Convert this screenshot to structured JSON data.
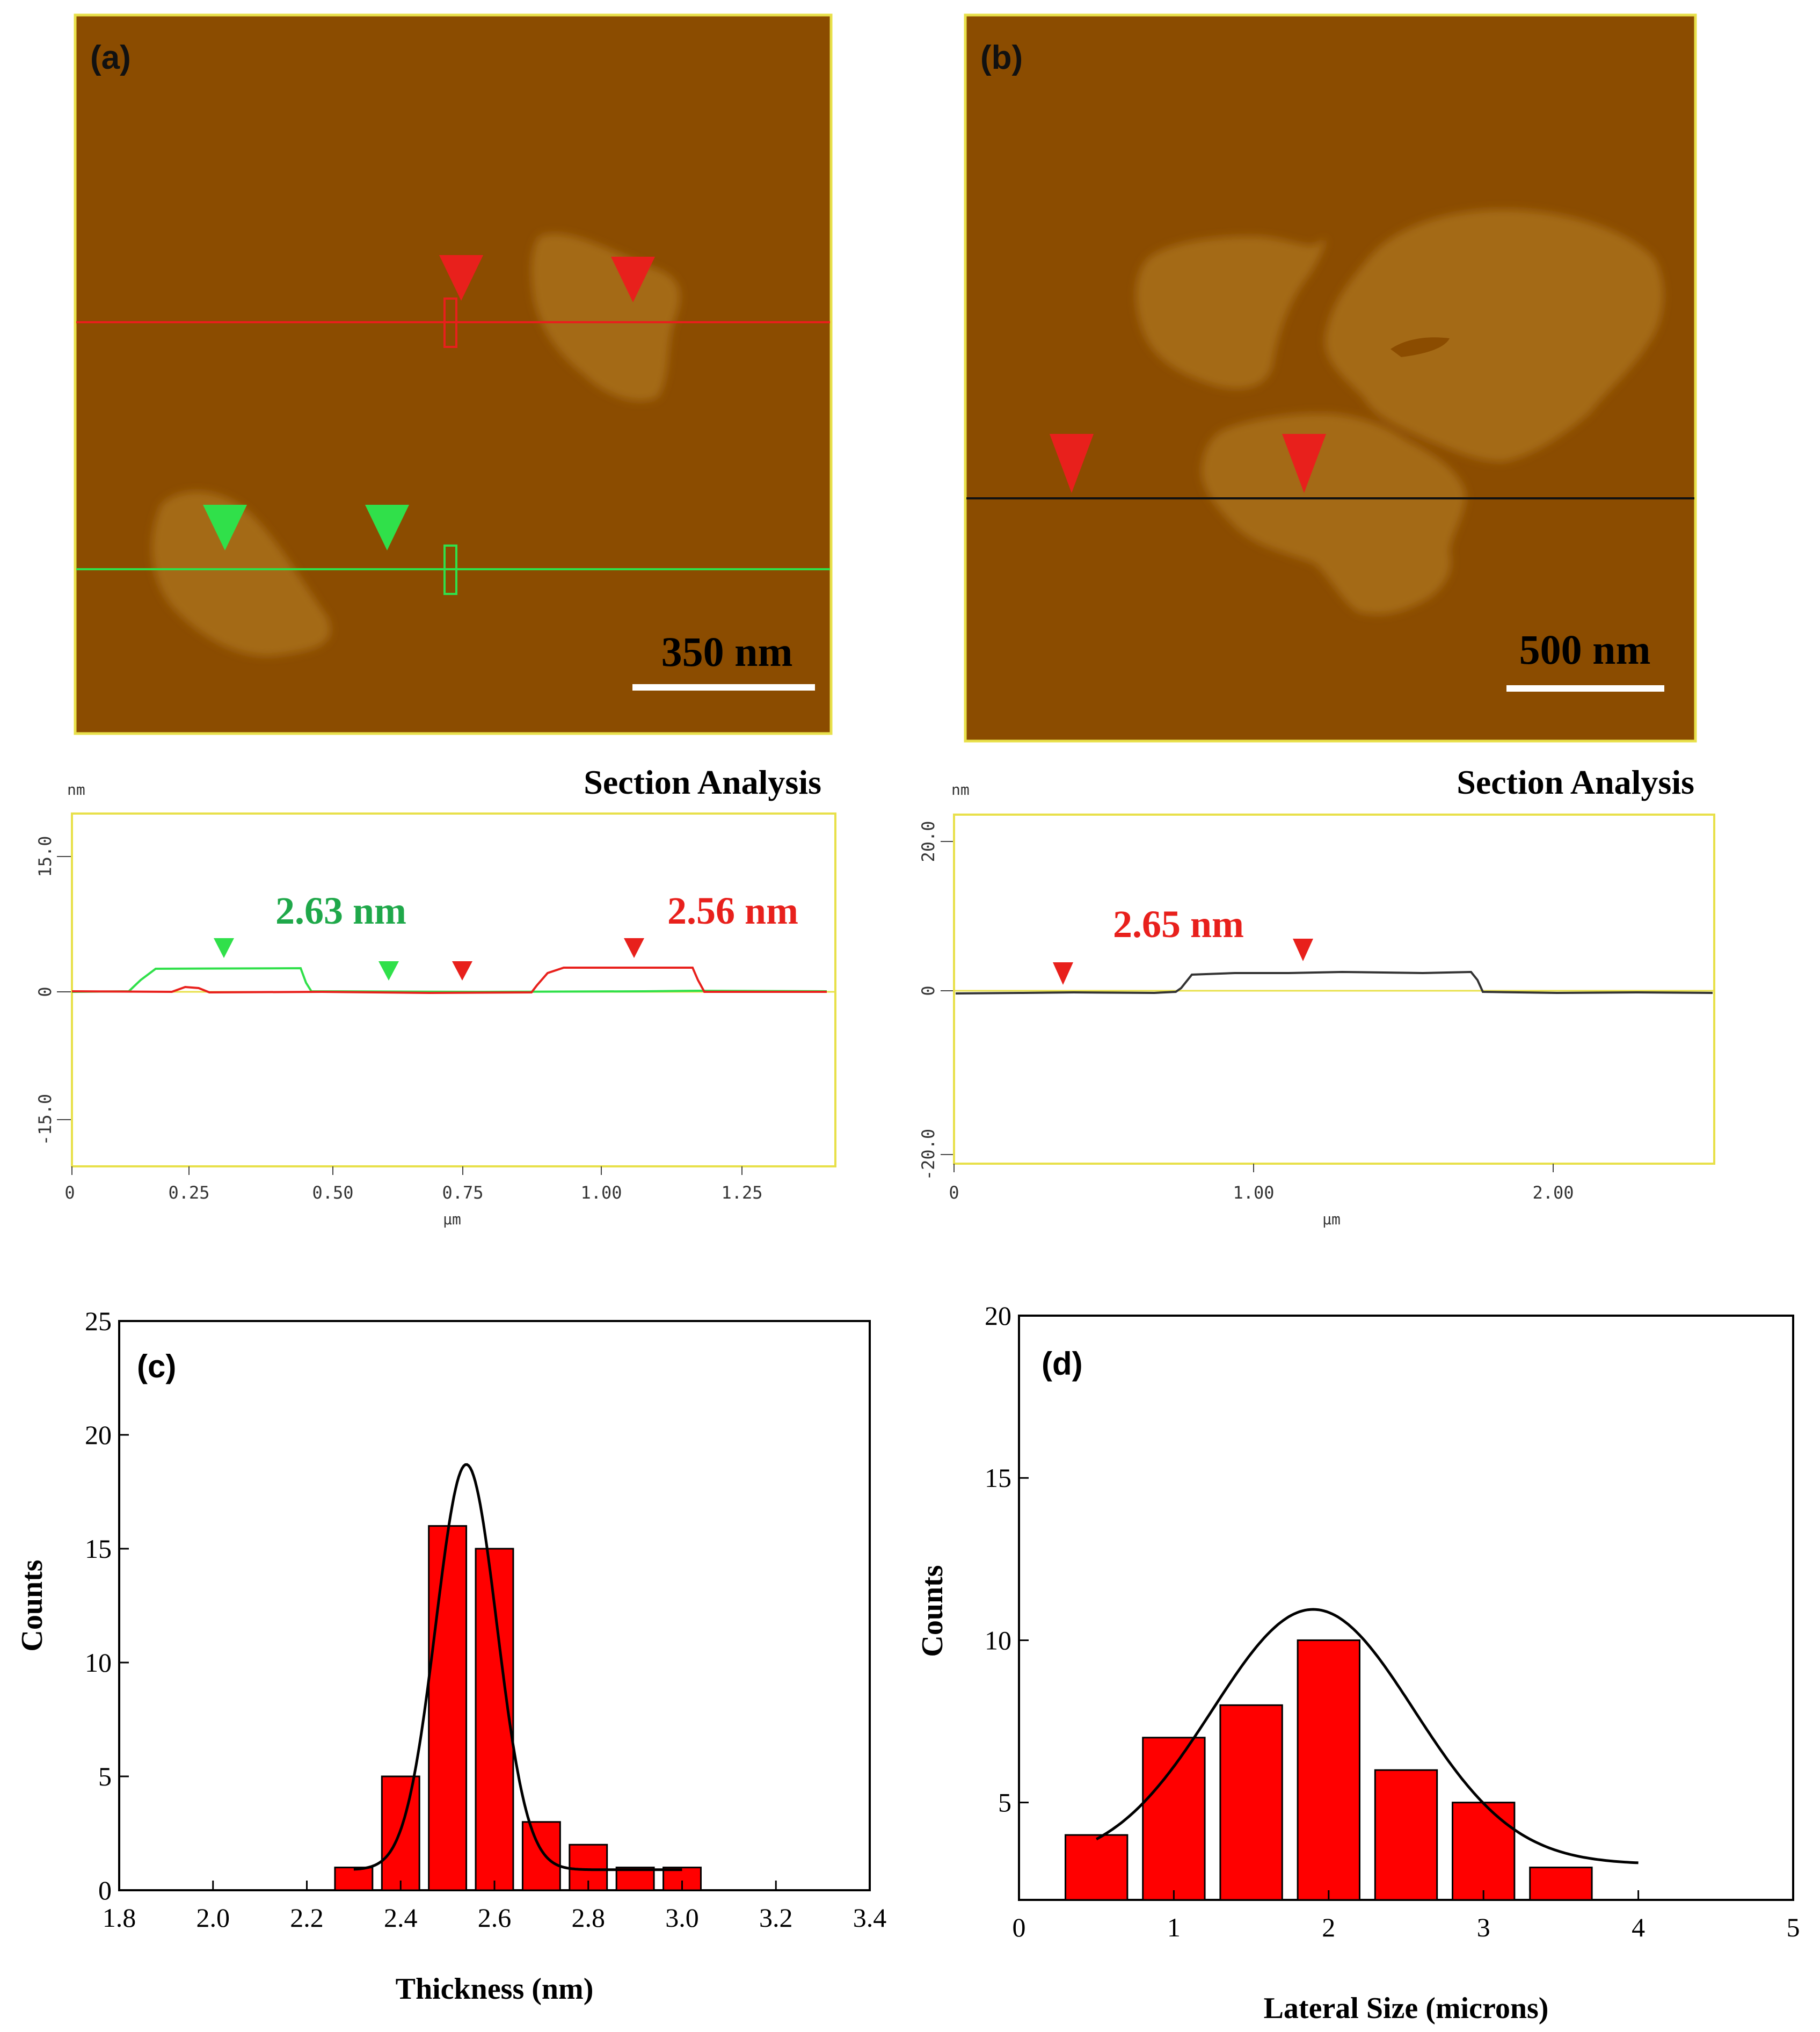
{
  "afm_images": {
    "a": {
      "label": "(a)",
      "scale_bar": "350 nm"
    },
    "b": {
      "label": "(b)",
      "scale_bar": "500 nm"
    }
  },
  "section_a": {
    "title": "Section Analysis",
    "y_unit": "nm",
    "x_unit": "µm",
    "y_ticks": [
      "15.0",
      "0",
      "-15.0"
    ],
    "x_ticks": [
      "0",
      "0.25",
      "0.50",
      "0.75",
      "1.00",
      "1.25"
    ],
    "annotations": [
      {
        "text": "2.63 nm",
        "color": "#1fa84a"
      },
      {
        "text": "2.56 nm",
        "color": "#e8201c"
      }
    ]
  },
  "section_b": {
    "title": "Section Analysis",
    "y_unit": "nm",
    "x_unit": "µm",
    "y_ticks": [
      "20.0",
      "0",
      "-20.0"
    ],
    "x_ticks": [
      "0",
      "1.00",
      "2.00"
    ],
    "annotations": [
      {
        "text": "2.65 nm",
        "color": "#e8201c"
      }
    ]
  },
  "chart_data": [
    {
      "type": "bar",
      "panel": "(c)",
      "xlabel": "Thickness (nm)",
      "ylabel": "Counts",
      "xlim": [
        1.8,
        3.4
      ],
      "ylim": [
        0,
        25
      ],
      "x_ticks": [
        "1.8",
        "2.0",
        "2.2",
        "2.4",
        "2.6",
        "2.8",
        "3.0",
        "3.2",
        "3.4"
      ],
      "y_ticks": [
        "0",
        "5",
        "10",
        "15",
        "20",
        "25"
      ],
      "bin_width": 0.08,
      "categories": [
        2.3,
        2.4,
        2.5,
        2.6,
        2.7,
        2.8,
        2.9,
        3.0
      ],
      "values": [
        1,
        5,
        16,
        15,
        3,
        2,
        1,
        1
      ],
      "fit": {
        "type": "gaussian",
        "center": 2.54,
        "amplitude": 17.8,
        "sigma": 0.065,
        "offset": 0.9,
        "range": [
          2.3,
          3.0
        ]
      }
    },
    {
      "type": "bar",
      "panel": "(d)",
      "xlabel": "Lateral Size (microns)",
      "ylabel": "Counts",
      "xlim": [
        0,
        5
      ],
      "ylim": [
        2,
        20
      ],
      "x_ticks": [
        "0",
        "1",
        "2",
        "3",
        "4",
        "5"
      ],
      "y_ticks": [
        "5",
        "10",
        "15",
        "20"
      ],
      "bin_width": 0.4,
      "categories": [
        0.5,
        1.0,
        1.5,
        2.0,
        2.5,
        3.0,
        3.5
      ],
      "values": [
        4,
        7,
        8,
        10,
        6,
        5,
        3
      ],
      "fit": {
        "type": "gaussian",
        "center": 1.9,
        "amplitude": 7.85,
        "sigma": 0.65,
        "offset": 3.1,
        "range": [
          0.5,
          4.0
        ]
      }
    }
  ]
}
